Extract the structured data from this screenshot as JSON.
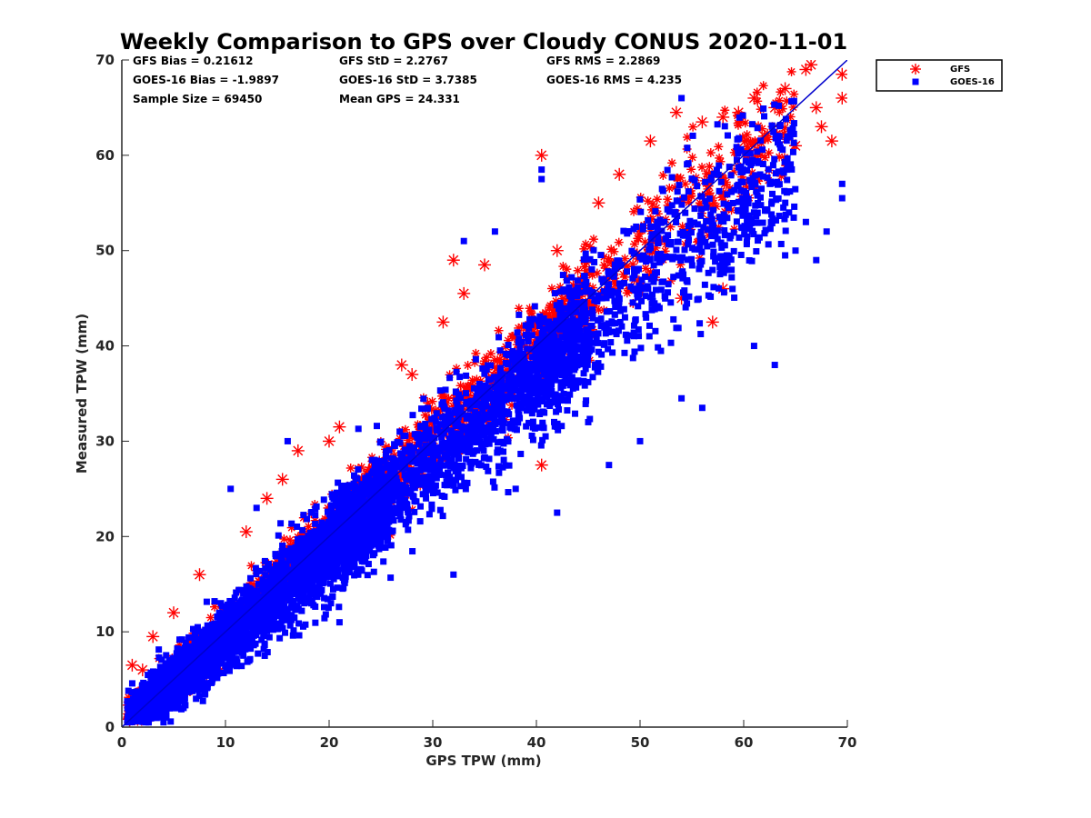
{
  "chart_data": {
    "type": "scatter",
    "title": "Weekly Comparison to GPS over Cloudy CONUS 2020-11-01",
    "xlabel": "GPS TPW (mm)",
    "ylabel": "Measured TPW (mm)",
    "xlim": [
      0,
      70
    ],
    "ylim": [
      0,
      70
    ],
    "xticks": [
      "0",
      "10",
      "20",
      "30",
      "40",
      "50",
      "60",
      "70"
    ],
    "yticks": [
      "0",
      "10",
      "20",
      "30",
      "40",
      "50",
      "60",
      "70"
    ],
    "grid": false,
    "legend_position": "outside top-right",
    "stats": [
      [
        "GFS Bias = 0.21612",
        "GFS StD = 2.2767",
        "GFS RMS = 2.2869"
      ],
      [
        "GOES-16 Bias = -1.9897",
        "GOES-16 StD = 3.7385",
        "GOES-16 RMS = 4.235"
      ],
      [
        "Sample Size = 69450",
        "Mean GPS = 24.331",
        ""
      ]
    ],
    "reference_line": {
      "x": [
        0,
        70
      ],
      "y": [
        0,
        70
      ],
      "color": "#0000cc"
    },
    "series": [
      {
        "name": "GFS",
        "marker": "asterisk",
        "color": "#ff0000",
        "scatter_model": {
          "slope": 1.0,
          "intercept": 0.2,
          "sd": 2.3
        },
        "outliers": [
          [
            1,
            6.5
          ],
          [
            2,
            6
          ],
          [
            3,
            9.5
          ],
          [
            5,
            12
          ],
          [
            7.5,
            16
          ],
          [
            12,
            20.5
          ],
          [
            14,
            24
          ],
          [
            15.5,
            26
          ],
          [
            17,
            29
          ],
          [
            20,
            30
          ],
          [
            21,
            31.5
          ],
          [
            27,
            38
          ],
          [
            28,
            37
          ],
          [
            31,
            42.5
          ],
          [
            32,
            49
          ],
          [
            33,
            45.5
          ],
          [
            35,
            48.5
          ],
          [
            40.5,
            60
          ],
          [
            40.5,
            27.5
          ],
          [
            42,
            50
          ],
          [
            46,
            55
          ],
          [
            48,
            58
          ],
          [
            51,
            61.5
          ],
          [
            53.5,
            64.5
          ],
          [
            56,
            63.5
          ],
          [
            58,
            64
          ],
          [
            59.5,
            64.5
          ],
          [
            61,
            66
          ],
          [
            62,
            62
          ],
          [
            63,
            65
          ],
          [
            64,
            67
          ],
          [
            65,
            61
          ],
          [
            66,
            69
          ],
          [
            66.5,
            69.5
          ],
          [
            67,
            65
          ],
          [
            67.5,
            63
          ],
          [
            68.5,
            61.5
          ],
          [
            69.5,
            68.5
          ],
          [
            69.5,
            66
          ],
          [
            58,
            46
          ],
          [
            57,
            42.5
          ],
          [
            54,
            45
          ]
        ]
      },
      {
        "name": "GOES-16",
        "marker": "square",
        "color": "#0000ff",
        "scatter_model": {
          "slope": 0.93,
          "intercept": 0.0,
          "sd": 3.7
        },
        "outliers": [
          [
            10.5,
            25
          ],
          [
            13,
            23
          ],
          [
            16,
            30
          ],
          [
            32,
            16
          ],
          [
            42,
            22.5
          ],
          [
            47,
            27.5
          ],
          [
            56,
            33.5
          ],
          [
            61,
            40
          ],
          [
            63,
            38
          ],
          [
            65,
            50
          ],
          [
            66,
            53
          ],
          [
            68,
            52
          ],
          [
            69.5,
            57
          ],
          [
            69.5,
            55.5
          ],
          [
            67,
            49
          ],
          [
            64,
            49.5
          ],
          [
            54,
            34.5
          ],
          [
            50,
            30
          ],
          [
            45,
            32
          ],
          [
            38,
            25
          ],
          [
            33,
            51
          ],
          [
            36,
            52
          ],
          [
            40.5,
            58.5
          ],
          [
            40.5,
            57.5
          ],
          [
            54,
            66
          ],
          [
            11,
            9.5
          ],
          [
            21,
            11
          ]
        ]
      }
    ]
  }
}
